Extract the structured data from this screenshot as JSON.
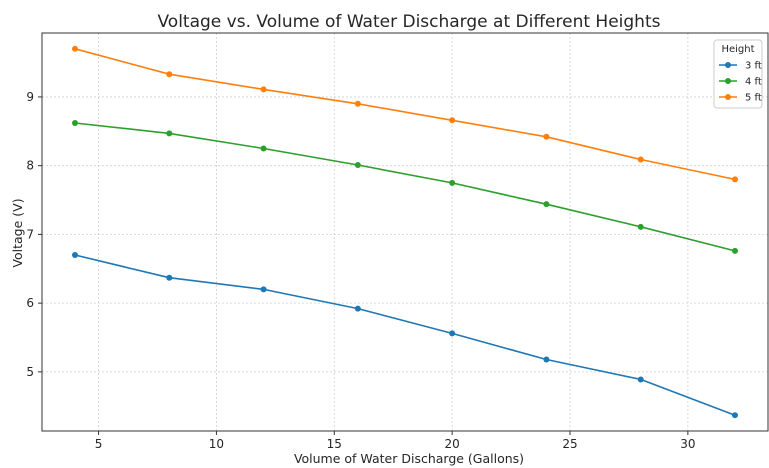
{
  "chart_data": {
    "type": "line",
    "title": "Voltage vs. Volume of Water Discharge at Different Heights",
    "xlabel": "Volume of Water Discharge (Gallons)",
    "ylabel": "Voltage (V)",
    "xlim": [
      2.6,
      33.4
    ],
    "ylim": [
      4.14,
      9.93
    ],
    "xticks": [
      5,
      10,
      15,
      20,
      25,
      30
    ],
    "yticks": [
      5,
      6,
      7,
      8,
      9
    ],
    "grid": true,
    "legend": {
      "title": "Height",
      "placement": "top-right"
    },
    "x": [
      4,
      8,
      12,
      16,
      20,
      24,
      28,
      32
    ],
    "series": [
      {
        "name": "3 ft",
        "color": "#1f77b4",
        "values": [
          6.7,
          6.37,
          6.2,
          5.92,
          5.56,
          5.18,
          4.89,
          4.37
        ]
      },
      {
        "name": "4 ft",
        "color": "#2ca02c",
        "values": [
          8.62,
          8.47,
          8.25,
          8.01,
          7.75,
          7.44,
          7.11,
          6.76
        ]
      },
      {
        "name": "5 ft",
        "color": "#ff7f0e",
        "values": [
          9.7,
          9.33,
          9.11,
          8.9,
          8.66,
          8.42,
          8.09,
          7.8
        ]
      }
    ]
  }
}
